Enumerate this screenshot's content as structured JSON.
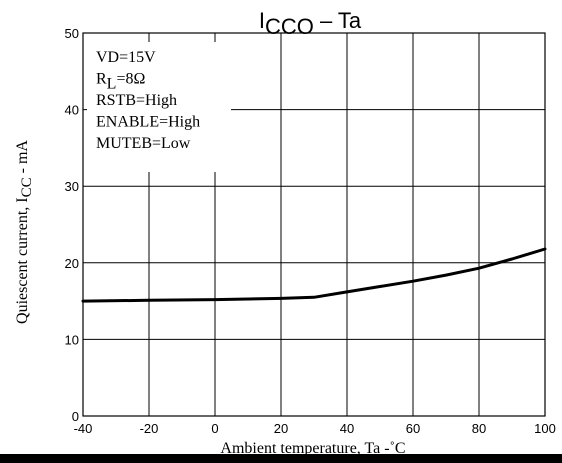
{
  "chart_data": {
    "type": "line",
    "title": {
      "main": "I",
      "sub": "CCO",
      "suffix": " –  Ta"
    },
    "xlabel": "Ambient temperature, Ta  -˚C",
    "ylabel": {
      "main": "Quiescent current, I",
      "sub": "CC",
      "suffix": "  - mA"
    },
    "xlim": [
      -40,
      100
    ],
    "ylim": [
      0,
      50
    ],
    "xticks": [
      -40,
      -20,
      0,
      20,
      40,
      60,
      80,
      100
    ],
    "yticks": [
      0,
      10,
      20,
      30,
      40,
      50
    ],
    "grid": true,
    "conditions": [
      {
        "main": "VD=15V",
        "sub": "",
        "suffix": ""
      },
      {
        "main": "R",
        "sub": "L",
        "suffix": "=8Ω"
      },
      {
        "main": "RSTB=High",
        "sub": "",
        "suffix": ""
      },
      {
        "main": "ENABLE=High",
        "sub": "",
        "suffix": ""
      },
      {
        "main": "MUTEB=Low",
        "sub": "",
        "suffix": ""
      }
    ],
    "series": [
      {
        "x": [
          -40,
          -20,
          0,
          20,
          30,
          40,
          50,
          60,
          70,
          80,
          90,
          100
        ],
        "y": [
          15.0,
          15.1,
          15.2,
          15.35,
          15.5,
          16.2,
          16.9,
          17.6,
          18.4,
          19.3,
          20.5,
          21.8
        ]
      }
    ]
  }
}
